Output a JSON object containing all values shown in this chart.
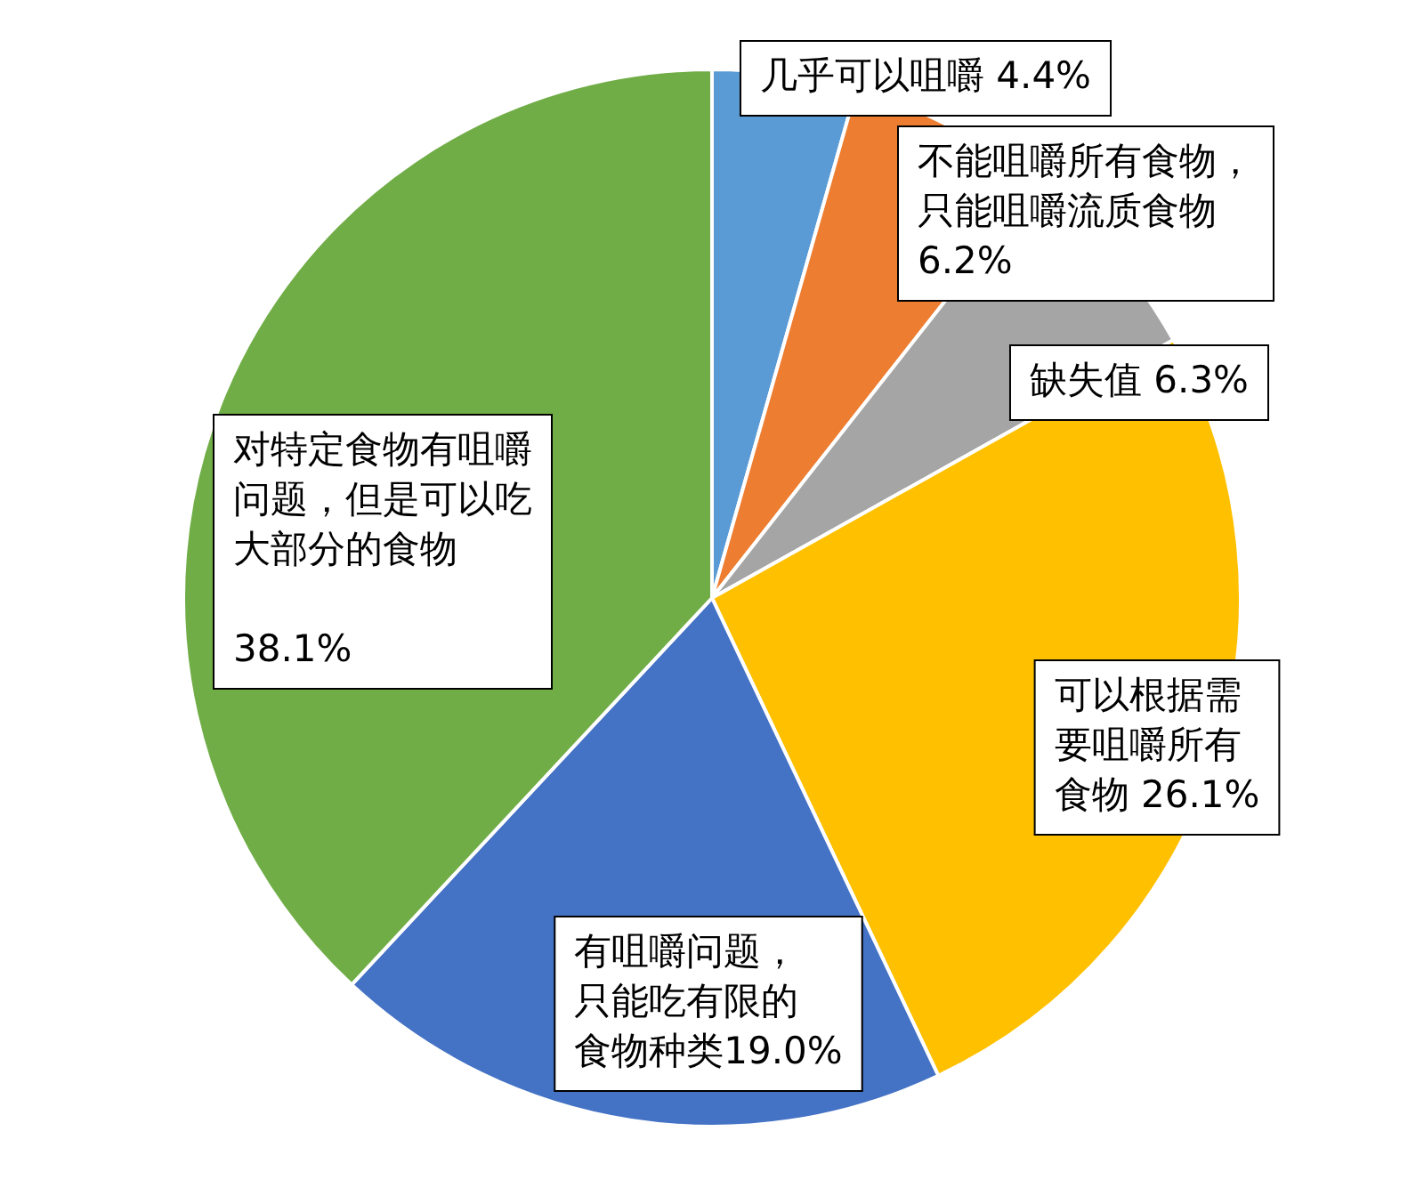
{
  "chart_data": {
    "type": "pie",
    "categories": [
      "几乎可以咀嚼",
      "不能咀嚼所有食物，只能咀嚼流质食物",
      "缺失值",
      "可以根据需要咀嚼所有食物",
      "有咀嚼问题，只能吃有限的食物种类",
      "对特定食物有咀嚼问题，但是可以吃大部分的食物"
    ],
    "values": [
      4.4,
      6.2,
      6.3,
      26.1,
      19.0,
      38.1
    ],
    "value_labels": [
      "4.4%",
      "6.2%",
      "6.3%",
      "26.1%",
      "19.0%",
      "38.1%"
    ],
    "colors": [
      "#5b9bd5",
      "#ed7d31",
      "#a5a5a5",
      "#ffc000",
      "#4472c4",
      "#70ad47"
    ],
    "legend": false
  }
}
